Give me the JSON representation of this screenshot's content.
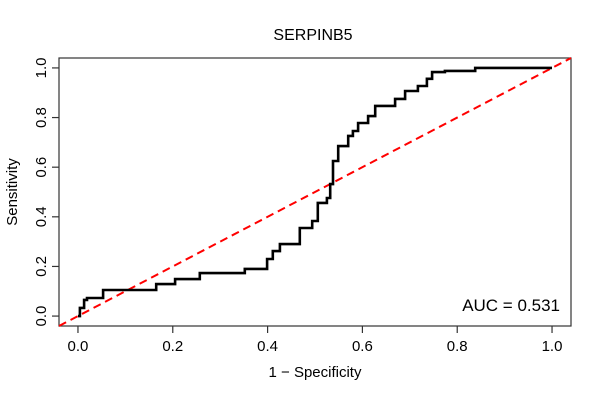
{
  "figure": {
    "title": "SERPINB5",
    "auc_text": "AUC = 0.531"
  },
  "chart_data": {
    "type": "line",
    "subtype": "roc-curve-step-plot",
    "title": "SERPINB5",
    "xlabel": "1 − Specificity",
    "ylabel": "Sensitivity",
    "xlim": [
      0,
      1
    ],
    "ylim": [
      0,
      1
    ],
    "grid": false,
    "legend_position": "none",
    "auc": 0.531,
    "annotation": {
      "text": "AUC = 0.531",
      "position": "bottom-right"
    },
    "x_ticks": {
      "values": [
        0.0,
        0.2,
        0.4,
        0.6,
        0.8,
        1.0
      ],
      "labels": [
        "0.0",
        "0.2",
        "0.4",
        "0.6",
        "0.8",
        "1.0"
      ]
    },
    "y_ticks": {
      "values": [
        0.0,
        0.2,
        0.4,
        0.6,
        0.8,
        1.0
      ],
      "labels": [
        "0.0",
        "0.2",
        "0.4",
        "0.6",
        "0.8",
        "1.0"
      ]
    },
    "series": [
      {
        "name": "ROC curve",
        "style": "step",
        "color": "#000000",
        "line_width": 2.6,
        "points": [
          [
            0.0,
            0.0
          ],
          [
            0.004,
            0.033
          ],
          [
            0.013,
            0.065
          ],
          [
            0.019,
            0.073
          ],
          [
            0.053,
            0.105
          ],
          [
            0.165,
            0.129
          ],
          [
            0.205,
            0.149
          ],
          [
            0.257,
            0.173
          ],
          [
            0.352,
            0.19
          ],
          [
            0.399,
            0.23
          ],
          [
            0.411,
            0.262
          ],
          [
            0.426,
            0.29
          ],
          [
            0.468,
            0.355
          ],
          [
            0.494,
            0.383
          ],
          [
            0.506,
            0.456
          ],
          [
            0.525,
            0.476
          ],
          [
            0.532,
            0.532
          ],
          [
            0.538,
            0.625
          ],
          [
            0.549,
            0.685
          ],
          [
            0.57,
            0.726
          ],
          [
            0.58,
            0.746
          ],
          [
            0.591,
            0.778
          ],
          [
            0.612,
            0.806
          ],
          [
            0.627,
            0.847
          ],
          [
            0.669,
            0.875
          ],
          [
            0.69,
            0.907
          ],
          [
            0.717,
            0.927
          ],
          [
            0.736,
            0.956
          ],
          [
            0.747,
            0.983
          ],
          [
            0.774,
            0.988
          ],
          [
            0.838,
            1.0
          ],
          [
            1.0,
            1.0
          ]
        ]
      },
      {
        "name": "Chance diagonal",
        "style": "dashed",
        "color": "#ff0000",
        "line_width": 2,
        "points": [
          [
            0,
            0
          ],
          [
            1,
            1
          ]
        ]
      }
    ]
  },
  "colors": {
    "background": "#ffffff",
    "axis": "#333333",
    "curve": "#000000",
    "diagonal": "#ff0000",
    "text": "#000000"
  }
}
